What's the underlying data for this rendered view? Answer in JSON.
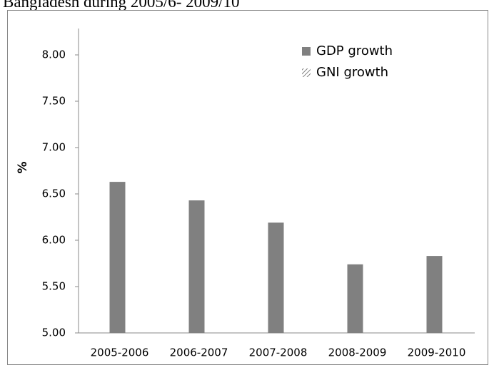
{
  "chart_data": {
    "type": "bar",
    "title": "Bangladesh during 2005/6- 2009/10",
    "y_label": "%",
    "categories": [
      "2005-2006",
      "2006-2007",
      "2007-2008",
      "2008-2009",
      "2009-2010"
    ],
    "series": [
      {
        "name": "GDP growth",
        "color": "#808080",
        "values": [
          6.63,
          6.43,
          6.19,
          5.74,
          5.83
        ]
      },
      {
        "name": "GNI growth",
        "color": "#808080",
        "values": [
          null,
          null,
          null,
          null,
          null
        ]
      }
    ],
    "ylim": [
      5,
      8.3
    ],
    "yticks": [
      {
        "value": 5,
        "label": "5.00"
      },
      {
        "value": 5.5,
        "label": "5.50"
      },
      {
        "value": 6,
        "label": "6.00"
      },
      {
        "value": 6.5,
        "label": "6.50"
      },
      {
        "value": 7,
        "label": "7.00"
      },
      {
        "value": 7.5,
        "label": "7.50"
      },
      {
        "value": 8,
        "label": "8.00"
      }
    ],
    "grid": false,
    "legend": "top-right"
  }
}
